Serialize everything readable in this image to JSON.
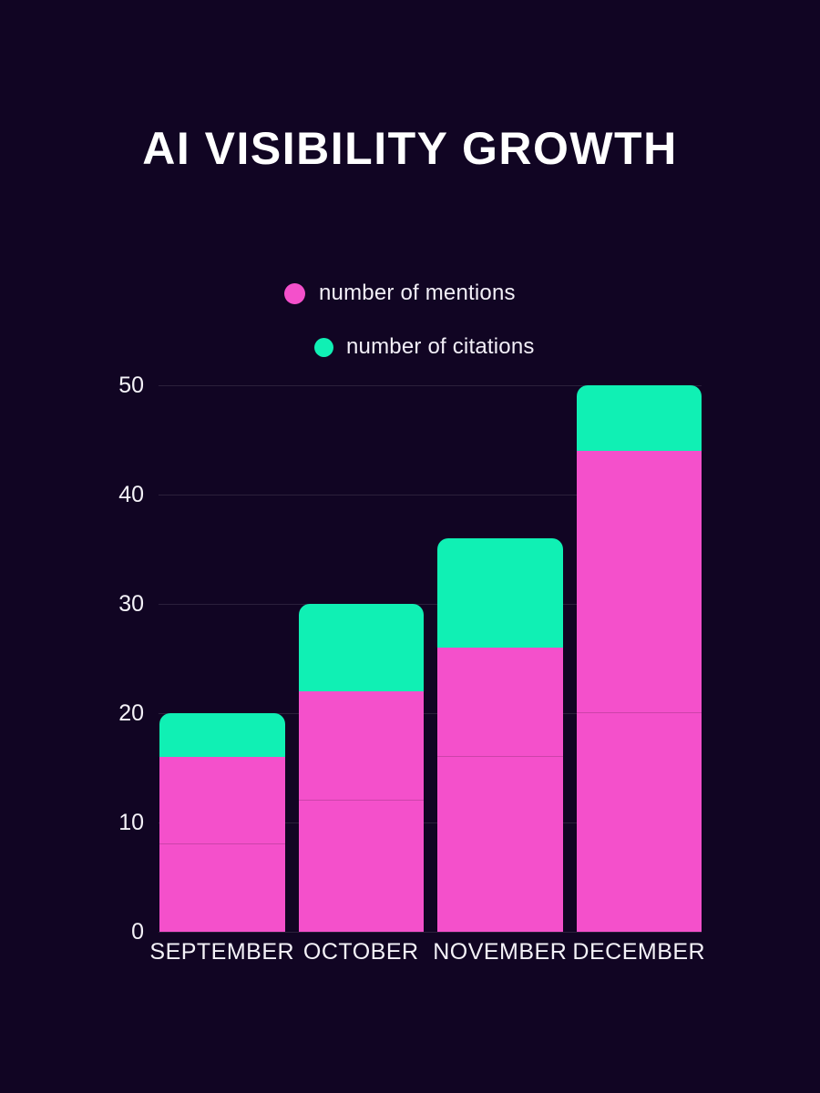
{
  "page": {
    "title": "AI VISIBILITY GROWTH",
    "background_color": "#110523",
    "title_color": "#ffffff",
    "axis_text_color": "#f4f2f8"
  },
  "legend": {
    "items": [
      {
        "label": "number of mentions",
        "color": "#f450cb"
      },
      {
        "label": "number of citations",
        "color": "#10f0b4"
      }
    ]
  },
  "chart_data": {
    "type": "bar",
    "stacked": true,
    "title": "AI VISIBILITY GROWTH",
    "categories": [
      "SEPTEMBER",
      "OCTOBER",
      "NOVEMBER",
      "DECEMBER"
    ],
    "series": [
      {
        "name": "number of mentions",
        "color": "#f450cb",
        "values": [
          16,
          22,
          26,
          44
        ]
      },
      {
        "name": "number of citations",
        "color": "#10f0b4",
        "values": [
          4,
          8,
          10,
          6
        ]
      }
    ],
    "stack_totals": [
      20,
      30,
      36,
      50
    ],
    "y_ticks": [
      0,
      10,
      20,
      30,
      40,
      50
    ],
    "ylim": [
      0,
      50
    ],
    "grid": true,
    "gridline_color": "rgba(255,255,255,0.11)",
    "legend_position": "top-center",
    "bar_inner_divider_values": [
      8,
      12,
      16,
      20
    ]
  }
}
